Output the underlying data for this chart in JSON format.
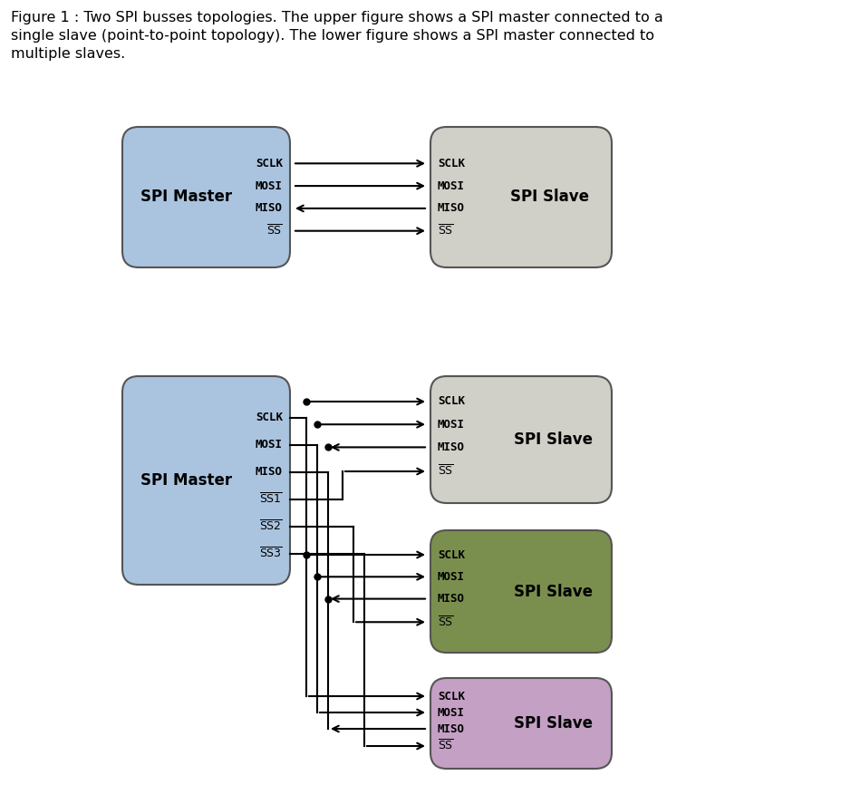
{
  "caption_line1": "Figure 1 : Two SPI busses topologies. The upper figure shows a SPI master connected to a",
  "caption_line2": "single slave (point-to-point topology). The lower figure shows a SPI master connected to",
  "caption_line3": "multiple slaves.",
  "caption_fontsize": 11.5,
  "signal_fontsize": 9,
  "label_fontsize": 12,
  "master_color": "#aac4e0",
  "slave1_color": "#d0cfc8",
  "slave2_color": "#7a8f4e",
  "slave3_color": "#c4a0c4",
  "bg_color": "#ffffff",
  "edge_color": "#555555"
}
